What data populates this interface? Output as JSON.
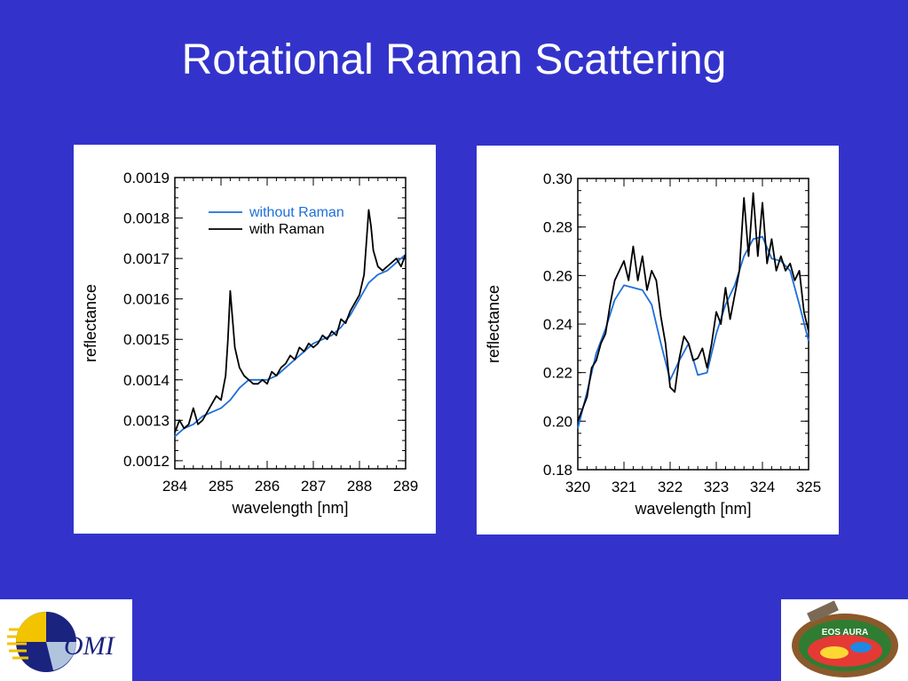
{
  "title": "Rotational Raman Scattering",
  "logos": {
    "left": "OMI",
    "right_text": "EOS AURA"
  },
  "colors": {
    "background": "#3333cc",
    "without_raman": "#1e6fd9",
    "with_raman": "#000000"
  },
  "chart_data": [
    {
      "type": "line",
      "xlabel": "wavelength [nm]",
      "ylabel": "reflectance",
      "xlim": [
        284,
        289
      ],
      "ylim": [
        0.00118,
        0.0019
      ],
      "xticks": [
        284,
        285,
        286,
        287,
        288,
        289
      ],
      "xtick_labels": [
        "284",
        "285",
        "286",
        "287",
        "288",
        "289"
      ],
      "yticks": [
        0.0012,
        0.0013,
        0.0014,
        0.0015,
        0.0016,
        0.0017,
        0.0018,
        0.0019
      ],
      "ytick_labels": [
        "0.0012",
        "0.0013",
        "0.0014",
        "0.0015",
        "0.0016",
        "0.0017",
        "0.0018",
        "0.0019"
      ],
      "legend": [
        "without Raman",
        "with Raman"
      ],
      "legend_position": "top-left",
      "series": [
        {
          "name": "without Raman",
          "color": "#1e6fd9",
          "x": [
            284.0,
            284.2,
            284.4,
            284.6,
            284.8,
            285.0,
            285.2,
            285.4,
            285.6,
            285.8,
            286.0,
            286.2,
            286.4,
            286.6,
            286.8,
            287.0,
            287.2,
            287.4,
            287.6,
            287.8,
            288.0,
            288.2,
            288.4,
            288.6,
            288.8,
            289.0
          ],
          "y": [
            0.00126,
            0.00128,
            0.00129,
            0.00131,
            0.00132,
            0.00133,
            0.00135,
            0.00138,
            0.0014,
            0.0014,
            0.0014,
            0.00141,
            0.00143,
            0.00145,
            0.00147,
            0.00149,
            0.0015,
            0.00151,
            0.00153,
            0.00156,
            0.0016,
            0.00164,
            0.00166,
            0.00167,
            0.00169,
            0.00171
          ]
        },
        {
          "name": "with Raman",
          "color": "#000000",
          "x": [
            284.0,
            284.1,
            284.2,
            284.3,
            284.4,
            284.5,
            284.6,
            284.7,
            284.8,
            284.9,
            285.0,
            285.1,
            285.15,
            285.2,
            285.25,
            285.3,
            285.4,
            285.5,
            285.6,
            285.7,
            285.8,
            285.9,
            286.0,
            286.1,
            286.2,
            286.3,
            286.4,
            286.5,
            286.6,
            286.7,
            286.8,
            286.9,
            287.0,
            287.1,
            287.2,
            287.3,
            287.4,
            287.5,
            287.6,
            287.7,
            287.8,
            287.9,
            288.0,
            288.1,
            288.15,
            288.2,
            288.25,
            288.3,
            288.4,
            288.5,
            288.6,
            288.7,
            288.8,
            288.9,
            289.0
          ],
          "y": [
            0.00127,
            0.0013,
            0.00128,
            0.00129,
            0.00133,
            0.00129,
            0.0013,
            0.00132,
            0.00134,
            0.00136,
            0.00135,
            0.00141,
            0.0015,
            0.00162,
            0.00155,
            0.00148,
            0.00143,
            0.00141,
            0.0014,
            0.00139,
            0.00139,
            0.0014,
            0.00139,
            0.00142,
            0.00141,
            0.00143,
            0.00144,
            0.00146,
            0.00145,
            0.00148,
            0.00147,
            0.00149,
            0.00148,
            0.00149,
            0.00151,
            0.0015,
            0.00152,
            0.00151,
            0.00155,
            0.00154,
            0.00157,
            0.00159,
            0.00161,
            0.00166,
            0.00174,
            0.00182,
            0.00178,
            0.00172,
            0.00168,
            0.00167,
            0.00168,
            0.00169,
            0.0017,
            0.00168,
            0.00171
          ]
        }
      ]
    },
    {
      "type": "line",
      "xlabel": "wavelength [nm]",
      "ylabel": "reflectance",
      "xlim": [
        320,
        325
      ],
      "ylim": [
        0.18,
        0.3
      ],
      "xticks": [
        320,
        321,
        322,
        323,
        324,
        325
      ],
      "xtick_labels": [
        "320",
        "321",
        "322",
        "323",
        "324",
        "325"
      ],
      "yticks": [
        0.18,
        0.2,
        0.22,
        0.24,
        0.26,
        0.28,
        0.3
      ],
      "ytick_labels": [
        "0.18",
        "0.20",
        "0.22",
        "0.24",
        "0.26",
        "0.28",
        "0.30"
      ],
      "series": [
        {
          "name": "without Raman",
          "color": "#1e6fd9",
          "x": [
            320.0,
            320.2,
            320.4,
            320.6,
            320.8,
            321.0,
            321.2,
            321.4,
            321.6,
            321.8,
            322.0,
            322.2,
            322.4,
            322.6,
            322.8,
            323.0,
            323.2,
            323.4,
            323.6,
            323.8,
            324.0,
            324.2,
            324.4,
            324.6,
            324.8,
            325.0
          ],
          "y": [
            0.197,
            0.212,
            0.228,
            0.238,
            0.25,
            0.256,
            0.255,
            0.254,
            0.248,
            0.232,
            0.217,
            0.225,
            0.232,
            0.219,
            0.22,
            0.236,
            0.248,
            0.256,
            0.268,
            0.275,
            0.276,
            0.267,
            0.266,
            0.262,
            0.248,
            0.233
          ]
        },
        {
          "name": "with Raman",
          "color": "#000000",
          "x": [
            320.0,
            320.1,
            320.2,
            320.3,
            320.4,
            320.5,
            320.6,
            320.7,
            320.8,
            320.9,
            321.0,
            321.1,
            321.2,
            321.3,
            321.4,
            321.5,
            321.6,
            321.7,
            321.8,
            321.9,
            322.0,
            322.1,
            322.2,
            322.3,
            322.4,
            322.5,
            322.6,
            322.7,
            322.8,
            322.9,
            323.0,
            323.1,
            323.2,
            323.3,
            323.4,
            323.5,
            323.6,
            323.7,
            323.8,
            323.9,
            324.0,
            324.1,
            324.2,
            324.3,
            324.4,
            324.5,
            324.6,
            324.7,
            324.8,
            324.9,
            325.0
          ],
          "y": [
            0.2,
            0.205,
            0.21,
            0.222,
            0.225,
            0.232,
            0.236,
            0.248,
            0.258,
            0.262,
            0.266,
            0.258,
            0.272,
            0.258,
            0.268,
            0.254,
            0.262,
            0.258,
            0.243,
            0.232,
            0.214,
            0.212,
            0.226,
            0.235,
            0.232,
            0.225,
            0.226,
            0.23,
            0.222,
            0.232,
            0.245,
            0.24,
            0.255,
            0.242,
            0.252,
            0.262,
            0.292,
            0.268,
            0.294,
            0.268,
            0.29,
            0.265,
            0.275,
            0.262,
            0.268,
            0.262,
            0.265,
            0.258,
            0.262,
            0.245,
            0.237
          ]
        }
      ]
    }
  ]
}
